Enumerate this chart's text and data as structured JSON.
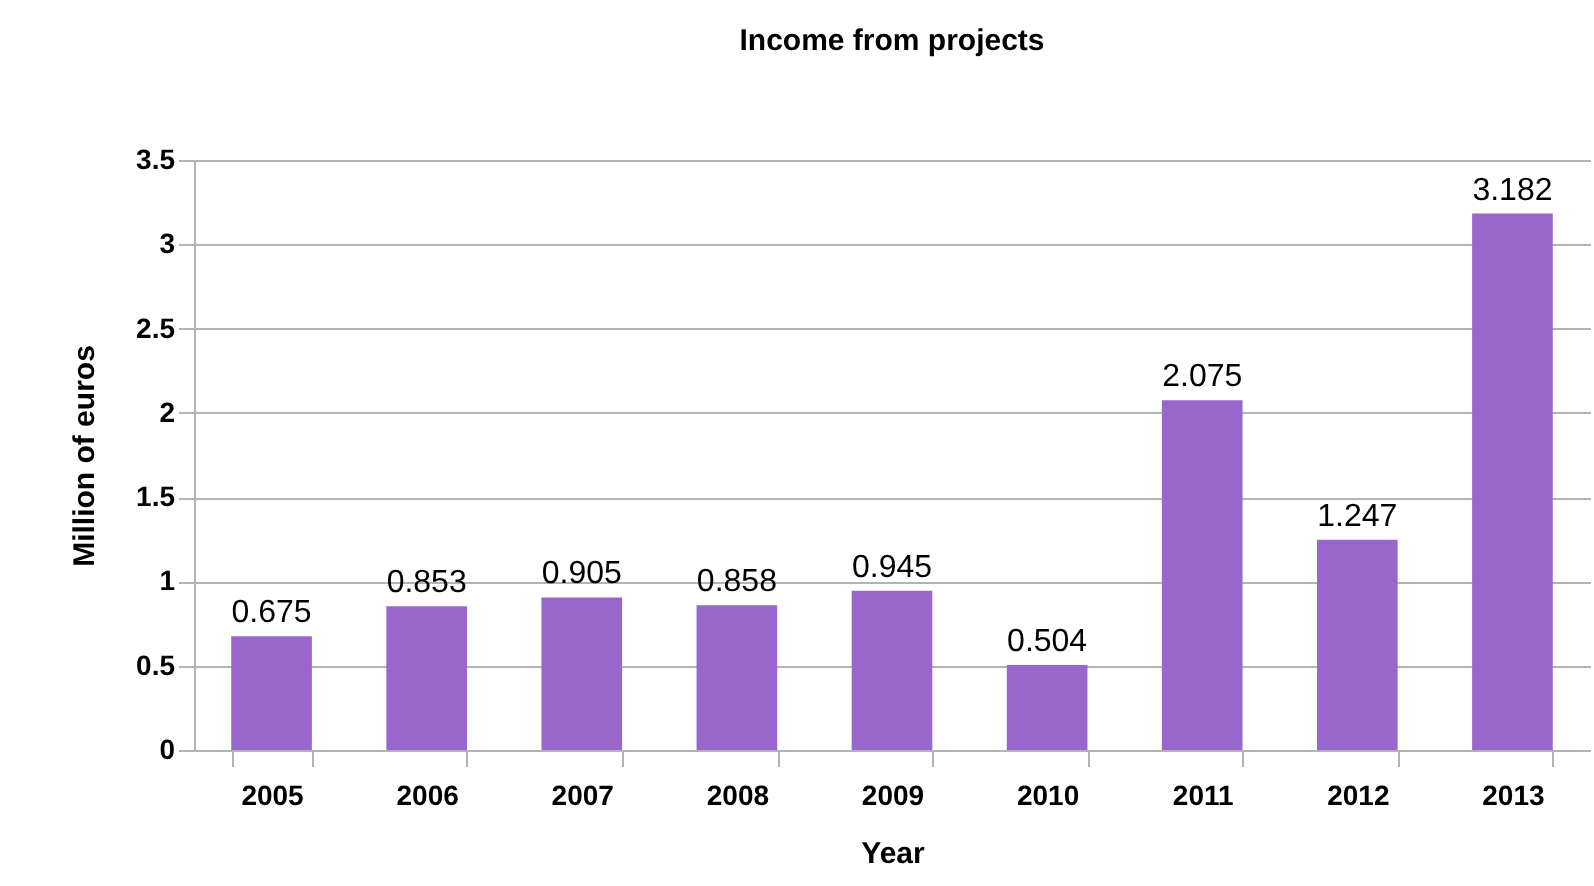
{
  "chart_data": {
    "type": "bar",
    "title": "Income from projects",
    "xlabel": "Year",
    "ylabel": "Million of euros",
    "categories": [
      "2005",
      "2006",
      "2007",
      "2008",
      "2009",
      "2010",
      "2011",
      "2012",
      "2013"
    ],
    "values": [
      0.675,
      0.853,
      0.905,
      0.858,
      0.945,
      0.504,
      2.075,
      1.247,
      3.182
    ],
    "color": "#9966cc",
    "ylim": [
      0,
      3.5
    ],
    "yticks": [
      0,
      0.5,
      1,
      1.5,
      2,
      2.5,
      3,
      3.5
    ],
    "grid": "y",
    "data_labels": true
  }
}
